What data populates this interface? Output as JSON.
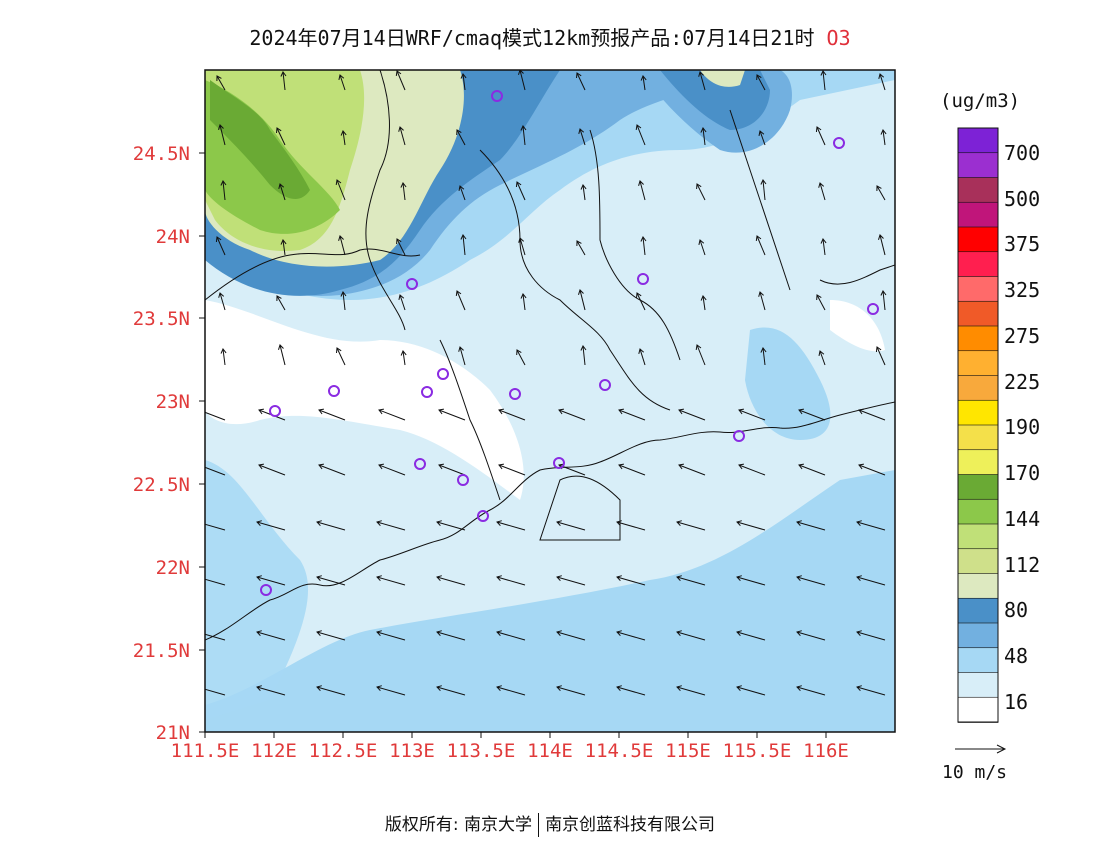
{
  "title": {
    "main": "2024年07月14日WRF/cmaq模式12km预报产品:07月14日21时",
    "species": "O3"
  },
  "axes": {
    "lat_labels": [
      "24.5N",
      "24N",
      "23.5N",
      "23N",
      "22.5N",
      "22N",
      "21.5N",
      "21N"
    ],
    "lon_labels": [
      "111.5E",
      "112E",
      "112.5E",
      "113E",
      "113.5E",
      "114E",
      "114.5E",
      "115E",
      "115.5E",
      "116E"
    ],
    "lat_range": [
      21,
      25
    ],
    "lon_range": [
      111.5,
      116.3
    ]
  },
  "legend": {
    "unit": "(ug/m3)",
    "labels": [
      "700",
      "500",
      "375",
      "325",
      "275",
      "225",
      "190",
      "170",
      "144",
      "112",
      "80",
      "48",
      "16"
    ],
    "colors": [
      "#7d22d6",
      "#9b2fd0",
      "#a8305a",
      "#c0157a",
      "#ff0000",
      "#ff1f4f",
      "#ff6a6a",
      "#f05a28",
      "#ff8c00",
      "#ffb030",
      "#f8a93c",
      "#ffe600",
      "#f4e04a",
      "#eef05a",
      "#6aaa34",
      "#8cc84a",
      "#c0e078",
      "#cfe08a",
      "#dde9c0",
      "#4a90c8",
      "#72b0e0",
      "#a6d8f4",
      "#d8eef8",
      "#ffffff"
    ]
  },
  "wind_reference": {
    "label": "10 m/s"
  },
  "stations_color": "#8a2be2",
  "copyright": {
    "left": "版权所有: 南京大学",
    "right": "南京创蓝科技有限公司"
  }
}
